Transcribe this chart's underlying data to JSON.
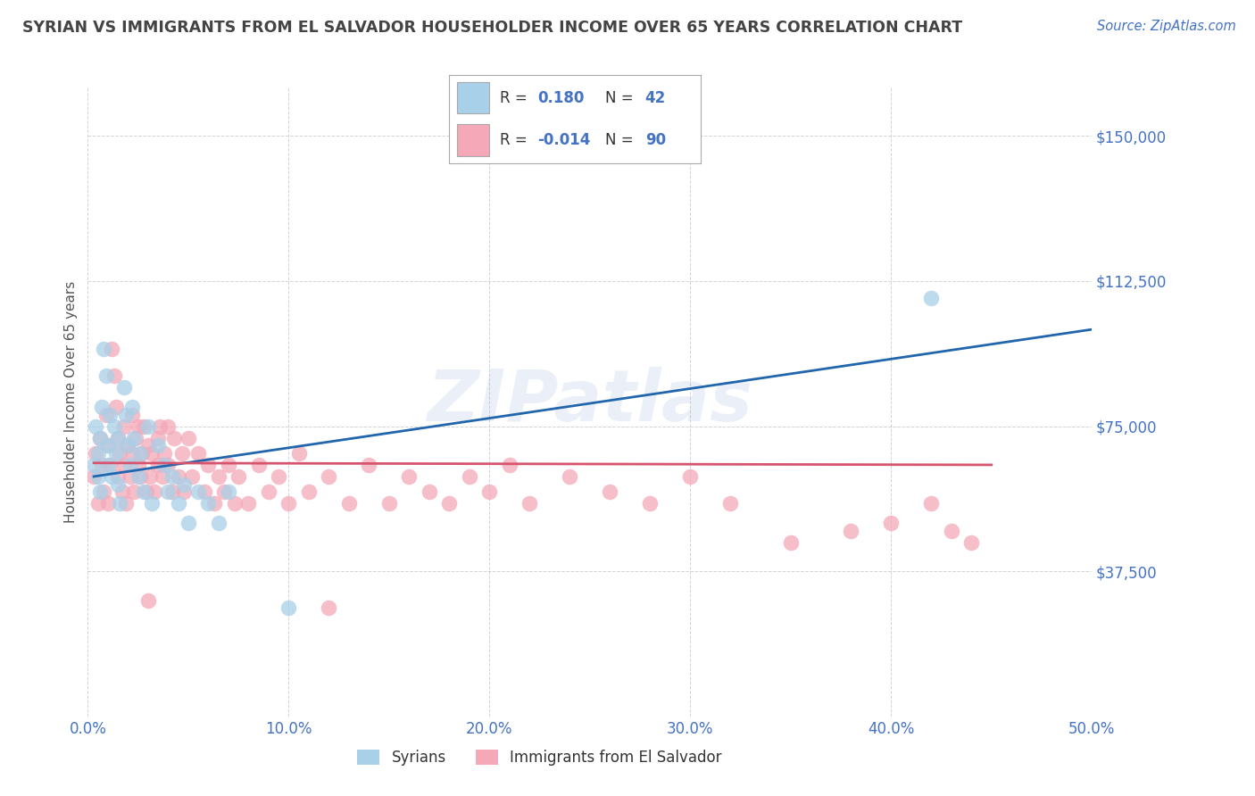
{
  "title": "SYRIAN VS IMMIGRANTS FROM EL SALVADOR HOUSEHOLDER INCOME OVER 65 YEARS CORRELATION CHART",
  "source": "Source: ZipAtlas.com",
  "ylabel": "Householder Income Over 65 years",
  "xlim": [
    0.0,
    0.5
  ],
  "ylim": [
    0,
    162500
  ],
  "yticks": [
    0,
    37500,
    75000,
    112500,
    150000
  ],
  "ytick_labels": [
    "",
    "$37,500",
    "$75,000",
    "$112,500",
    "$150,000"
  ],
  "xtick_labels": [
    "0.0%",
    "10.0%",
    "20.0%",
    "30.0%",
    "40.0%",
    "50.0%"
  ],
  "xticks": [
    0.0,
    0.1,
    0.2,
    0.3,
    0.4,
    0.5
  ],
  "legend_r1_R": "0.180",
  "legend_r1_N": "42",
  "legend_r2_R": "-0.014",
  "legend_r2_N": "90",
  "legend_label1": "Syrians",
  "legend_label2": "Immigrants from El Salvador",
  "color_syrian": "#a8d0e8",
  "color_salvador": "#f4a8b8",
  "color_line_syrian": "#2166ac",
  "color_line_salvador": "#d6546e",
  "title_color": "#444444",
  "axis_tick_color": "#4472c4",
  "watermark_color": "#4472c4",
  "background_color": "#ffffff",
  "syrian_x": [
    0.003,
    0.004,
    0.005,
    0.005,
    0.006,
    0.006,
    0.007,
    0.008,
    0.009,
    0.01,
    0.01,
    0.011,
    0.012,
    0.013,
    0.014,
    0.015,
    0.015,
    0.016,
    0.018,
    0.019,
    0.02,
    0.021,
    0.022,
    0.023,
    0.025,
    0.026,
    0.028,
    0.03,
    0.032,
    0.035,
    0.038,
    0.04,
    0.042,
    0.045,
    0.048,
    0.05,
    0.055,
    0.06,
    0.065,
    0.07,
    0.1,
    0.42
  ],
  "syrian_y": [
    65000,
    75000,
    62000,
    68000,
    58000,
    72000,
    80000,
    95000,
    88000,
    70000,
    65000,
    78000,
    62000,
    75000,
    68000,
    60000,
    72000,
    55000,
    85000,
    78000,
    70000,
    65000,
    80000,
    72000,
    62000,
    68000,
    58000,
    75000,
    55000,
    70000,
    65000,
    58000,
    62000,
    55000,
    60000,
    50000,
    58000,
    55000,
    50000,
    58000,
    28000,
    108000
  ],
  "salvador_x": [
    0.003,
    0.004,
    0.005,
    0.006,
    0.007,
    0.008,
    0.009,
    0.01,
    0.01,
    0.011,
    0.012,
    0.013,
    0.014,
    0.015,
    0.015,
    0.016,
    0.017,
    0.018,
    0.018,
    0.019,
    0.02,
    0.021,
    0.022,
    0.022,
    0.023,
    0.024,
    0.025,
    0.025,
    0.026,
    0.027,
    0.028,
    0.029,
    0.03,
    0.031,
    0.032,
    0.033,
    0.035,
    0.035,
    0.036,
    0.037,
    0.038,
    0.04,
    0.04,
    0.042,
    0.043,
    0.045,
    0.047,
    0.048,
    0.05,
    0.052,
    0.055,
    0.058,
    0.06,
    0.063,
    0.065,
    0.068,
    0.07,
    0.073,
    0.075,
    0.08,
    0.085,
    0.09,
    0.095,
    0.1,
    0.105,
    0.11,
    0.12,
    0.13,
    0.14,
    0.15,
    0.16,
    0.17,
    0.18,
    0.19,
    0.2,
    0.21,
    0.22,
    0.24,
    0.26,
    0.28,
    0.3,
    0.32,
    0.35,
    0.38,
    0.4,
    0.42,
    0.43,
    0.44,
    0.03,
    0.12
  ],
  "salvador_y": [
    62000,
    68000,
    55000,
    72000,
    65000,
    58000,
    78000,
    70000,
    55000,
    65000,
    95000,
    88000,
    80000,
    72000,
    62000,
    68000,
    58000,
    75000,
    65000,
    55000,
    70000,
    62000,
    68000,
    78000,
    58000,
    72000,
    65000,
    75000,
    62000,
    68000,
    75000,
    58000,
    70000,
    62000,
    68000,
    58000,
    72000,
    65000,
    75000,
    62000,
    68000,
    75000,
    65000,
    58000,
    72000,
    62000,
    68000,
    58000,
    72000,
    62000,
    68000,
    58000,
    65000,
    55000,
    62000,
    58000,
    65000,
    55000,
    62000,
    55000,
    65000,
    58000,
    62000,
    55000,
    68000,
    58000,
    62000,
    55000,
    65000,
    55000,
    62000,
    58000,
    55000,
    62000,
    58000,
    65000,
    55000,
    62000,
    58000,
    55000,
    62000,
    55000,
    45000,
    48000,
    50000,
    55000,
    48000,
    45000,
    30000,
    28000
  ],
  "trend_syrian_x0": 0.003,
  "trend_syrian_x1": 0.5,
  "trend_syrian_y0": 62000,
  "trend_syrian_y1": 100000,
  "trend_salvador_x0": 0.003,
  "trend_salvador_x1": 0.45,
  "trend_salvador_y0": 65500,
  "trend_salvador_y1": 65000
}
